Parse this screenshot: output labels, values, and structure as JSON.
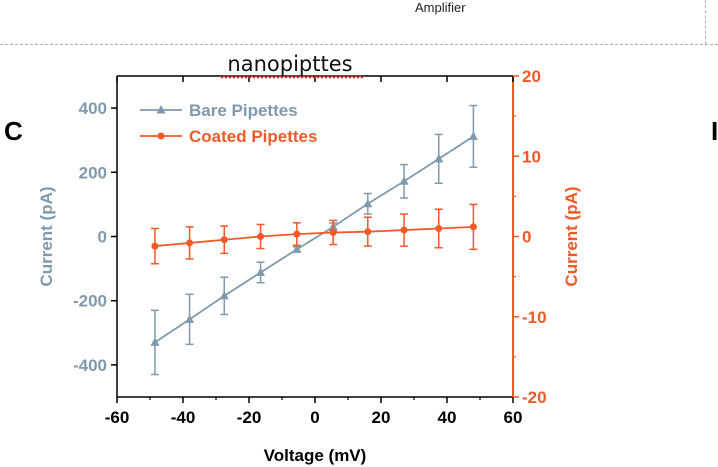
{
  "header": {
    "text": "Amplifier"
  },
  "panel_labels": {
    "left": "C",
    "right": "I"
  },
  "colors": {
    "bare": "#7f9aad",
    "coated": "#f05a28",
    "axis": "#000000",
    "title_underline": "#e03030"
  },
  "chart_data": {
    "type": "line",
    "title": "nanopipttes",
    "xlabel": "Voltage (mV)",
    "ylabel_left": "Current (pA)",
    "ylabel_right": "Current (pA)",
    "xlim": [
      -60,
      60
    ],
    "ylim_left": [
      -500,
      500
    ],
    "ylim_right": [
      -20,
      20
    ],
    "xticks": [
      -60,
      -40,
      -20,
      0,
      20,
      40,
      60
    ],
    "yticks_left": [
      -400,
      -200,
      0,
      200,
      400
    ],
    "yticks_right": [
      -20,
      -10,
      0,
      10,
      20
    ],
    "legend_position": "top-left",
    "series": [
      {
        "name": "Bare Pipettes",
        "axis": "left",
        "marker": "triangle",
        "x": [
          -48.5,
          -38,
          -27.5,
          -16.5,
          -5.5,
          5.5,
          16,
          27,
          37.5,
          48
        ],
        "y": [
          -330,
          -258,
          -185,
          -112,
          -40,
          30,
          102,
          172,
          242,
          312
        ],
        "err": [
          100,
          78,
          58,
          32,
          8,
          12,
          32,
          52,
          76,
          96
        ]
      },
      {
        "name": "Coated Pipettes",
        "axis": "right",
        "marker": "circle",
        "x": [
          -48.5,
          -38,
          -27.5,
          -16.5,
          -5.5,
          5.5,
          16,
          27,
          37.5,
          48
        ],
        "y": [
          -1.2,
          -0.8,
          -0.4,
          0.0,
          0.3,
          0.5,
          0.6,
          0.8,
          1.0,
          1.2
        ],
        "err": [
          2.2,
          2.0,
          1.7,
          1.5,
          1.4,
          1.5,
          1.8,
          2.0,
          2.4,
          2.8
        ]
      }
    ]
  }
}
